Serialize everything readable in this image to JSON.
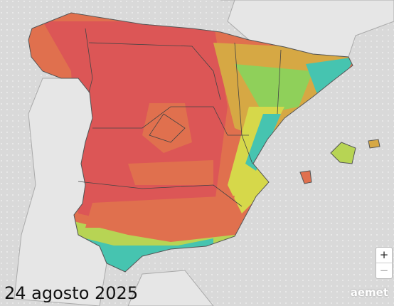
{
  "date_label": "24 agosto 2025",
  "zoom": {
    "in": "+",
    "out": "−"
  },
  "logo": "aemet"
}
